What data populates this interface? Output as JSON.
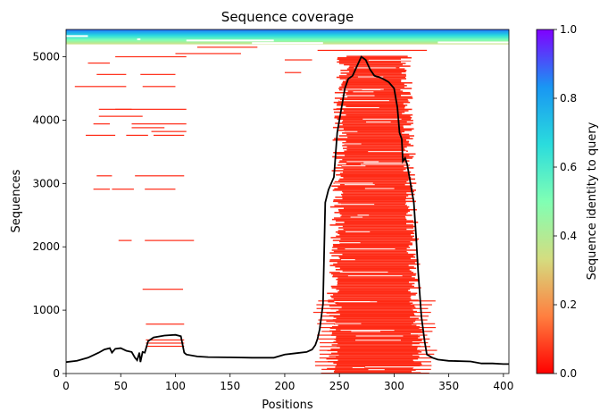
{
  "chart_data": {
    "type": "heatmap",
    "title": "Sequence coverage",
    "xlabel": "Positions",
    "ylabel": "Sequences",
    "xlim": [
      0,
      405
    ],
    "ylim": [
      0,
      5430
    ],
    "xticks": [
      0,
      50,
      100,
      150,
      200,
      250,
      300,
      350,
      400
    ],
    "yticks": [
      0,
      1000,
      2000,
      3000,
      4000,
      5000
    ],
    "colorbar": {
      "label": "Sequence identity to query",
      "range": [
        0,
        1
      ],
      "ticks": [
        "0.0",
        "0.2",
        "0.4",
        "0.6",
        "0.8",
        "1.0"
      ],
      "colormap": "rainbow",
      "colors": [
        "#ff0000",
        "#ff7f40",
        "#d4dd80",
        "#80ffb4",
        "#2adcdd",
        "#1996f3",
        "#8000ff"
      ]
    },
    "background_color": "#ffffff",
    "alignment_color_low_identity": "#ff2a15",
    "coverage_line": {
      "name": "coverage",
      "color": "#000000",
      "x": [
        0,
        10,
        20,
        30,
        35,
        40,
        42,
        45,
        50,
        55,
        60,
        63,
        65,
        67,
        68,
        70,
        72,
        75,
        80,
        90,
        100,
        105,
        108,
        110,
        120,
        130,
        150,
        170,
        190,
        200,
        210,
        220,
        225,
        228,
        230,
        232,
        235,
        237,
        240,
        245,
        248,
        252,
        255,
        258,
        262,
        266,
        270,
        274,
        278,
        282,
        286,
        290,
        295,
        300,
        303,
        305,
        307,
        308,
        310,
        312,
        315,
        318,
        320,
        322,
        325,
        328,
        330,
        335,
        340,
        350,
        370,
        380,
        390,
        400,
        405
      ],
      "y": [
        180,
        200,
        250,
        330,
        380,
        400,
        330,
        390,
        400,
        360,
        340,
        250,
        210,
        330,
        180,
        340,
        330,
        510,
        570,
        600,
        610,
        590,
        330,
        300,
        270,
        260,
        255,
        250,
        250,
        300,
        320,
        340,
        380,
        450,
        550,
        700,
        1100,
        2700,
        2900,
        3100,
        3800,
        4200,
        4500,
        4650,
        4700,
        4850,
        5000,
        4950,
        4800,
        4700,
        4680,
        4650,
        4600,
        4500,
        4200,
        3800,
        3700,
        3350,
        3400,
        3300,
        3000,
        2700,
        2200,
        1600,
        900,
        500,
        300,
        250,
        220,
        200,
        190,
        160,
        160,
        150,
        150
      ]
    },
    "segments_note_free": true,
    "alignment_blocks": [
      {
        "x_start": 236,
        "x_end": 328,
        "y_start": 0,
        "y_end": 5010,
        "identity": 0.0
      },
      {
        "x_start": 0,
        "x_end": 405,
        "y_start": 5200,
        "y_end": 5430,
        "identity": 0.6
      }
    ]
  }
}
